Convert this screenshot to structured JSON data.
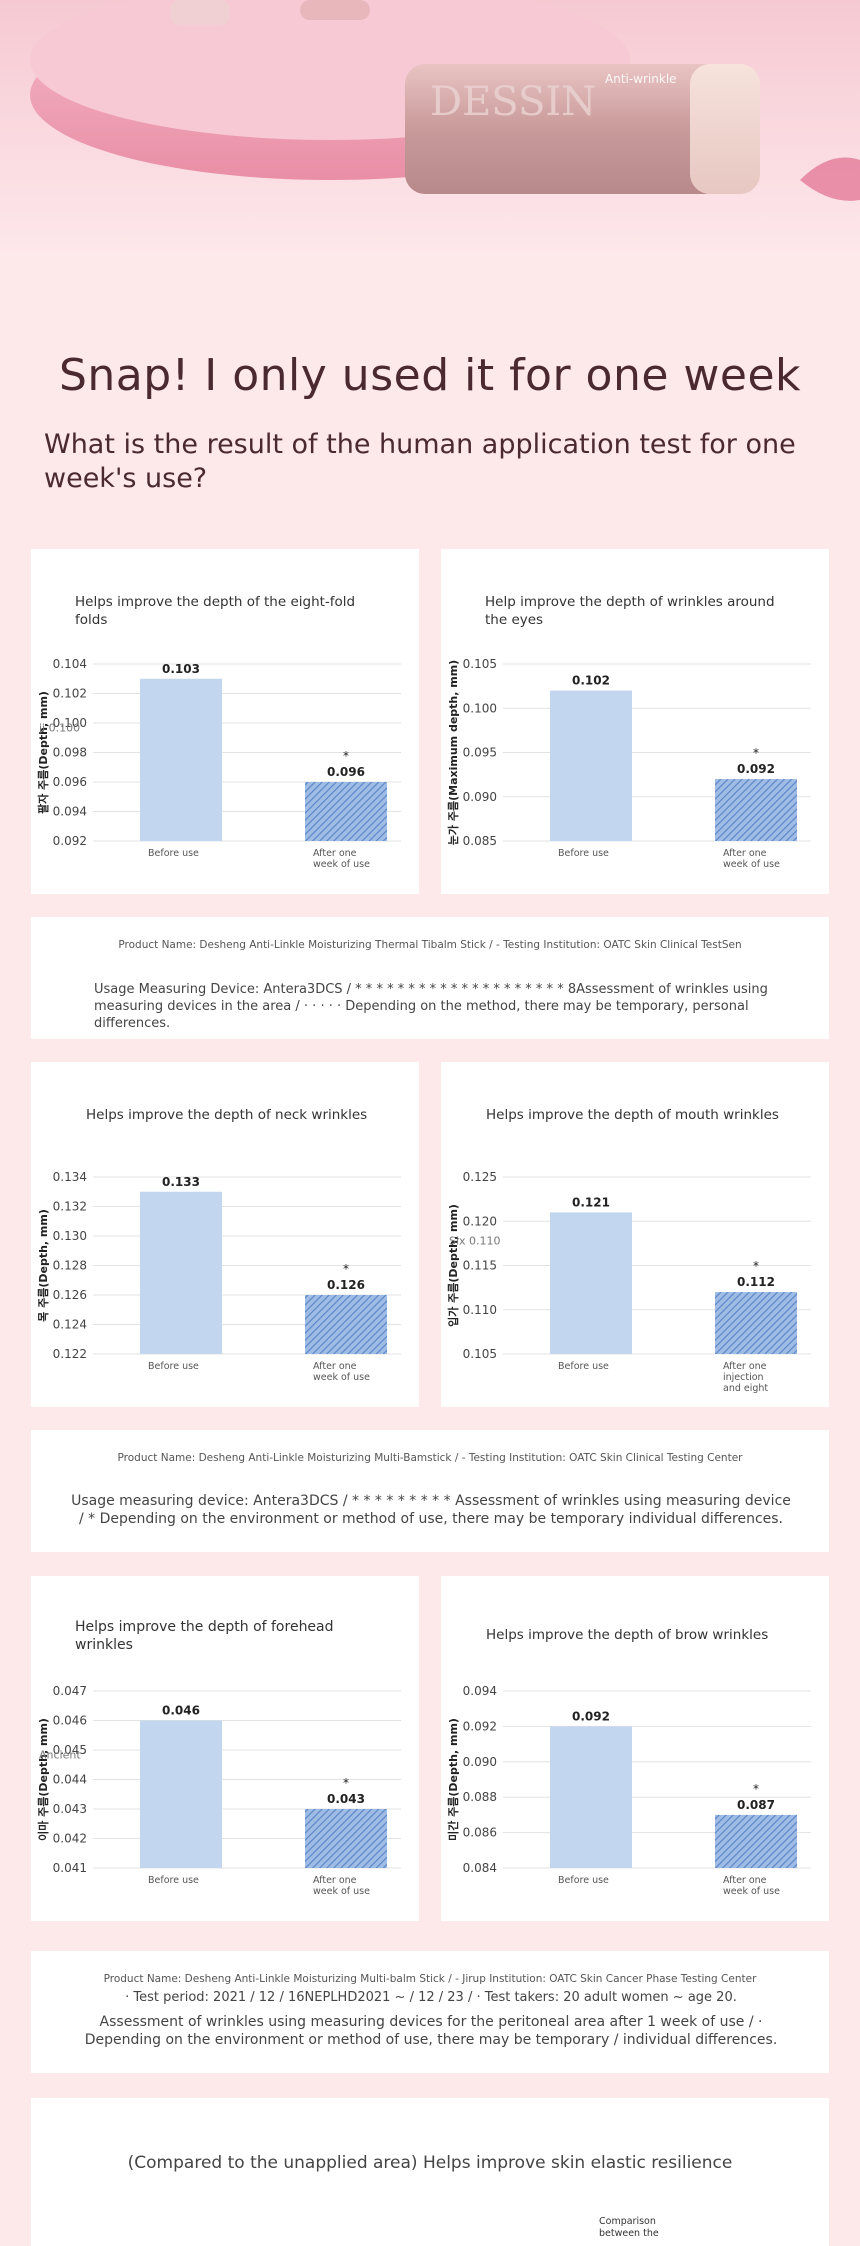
{
  "hero": {
    "brand": "DESSIN",
    "product_tag": "Anti-wrinkle"
  },
  "headline": "Snap! I only used it for one week",
  "subhead": "What is the result of the human application test for one week's use?",
  "colors": {
    "bar_before": "#c2d6ef",
    "bar_after": "#5b86c9",
    "title": "#4a2a30",
    "background": "#fde8ea"
  },
  "charts": [
    {
      "title": "Helps improve the depth of the eight-fold folds",
      "ylabel": "팔자 주름(Depth, mm)",
      "overlay": "ji 0.100",
      "chart_data": {
        "type": "bar",
        "categories": [
          "Before use",
          "After one week of use"
        ],
        "values": [
          0.103,
          0.096
        ],
        "labels": [
          "0.103",
          "0.096"
        ],
        "ylim": [
          0.092,
          0.104
        ],
        "ticks": [
          "0.092",
          "0.094",
          "0.096",
          "0.098",
          "0.100",
          "0.102",
          "0.104"
        ]
      }
    },
    {
      "title": "Help improve the depth of wrinkles around the eyes",
      "ylabel": "눈가 주름(Maximum depth, mm)",
      "overlay": "",
      "chart_data": {
        "type": "bar",
        "categories": [
          "Before use",
          "After one week of use"
        ],
        "values": [
          0.102,
          0.092
        ],
        "labels": [
          "0.102",
          "0.092"
        ],
        "ylim": [
          0.085,
          0.105
        ],
        "ticks": [
          "0.085",
          "0.090",
          "0.095",
          "0.100",
          "0.105"
        ]
      }
    },
    {
      "title": "Helps improve the depth of neck wrinkles",
      "ylabel": "목 주름(Depth, mm)",
      "overlay": "",
      "chart_data": {
        "type": "bar",
        "categories": [
          "Before use",
          "After one week of use"
        ],
        "values": [
          0.133,
          0.126
        ],
        "labels": [
          "0.133",
          "0.126"
        ],
        "ylim": [
          0.122,
          0.134
        ],
        "ticks": [
          "0.122",
          "0.124",
          "0.126",
          "0.128",
          "0.130",
          "0.132",
          "0.134"
        ]
      }
    },
    {
      "title": "Helps improve the depth of mouth wrinkles",
      "ylabel": "입가 주름(Depth, mm)",
      "overlay": "Six 0.110",
      "chart_data": {
        "type": "bar",
        "categories": [
          "Before use",
          "After one injection and eight"
        ],
        "values": [
          0.121,
          0.112
        ],
        "labels": [
          "0.121",
          "0.112"
        ],
        "ylim": [
          0.105,
          0.125
        ],
        "ticks": [
          "0.105",
          "0.110",
          "0.115",
          "0.120",
          "0.125"
        ]
      }
    },
    {
      "title": "Helps improve the depth of forehead wrinkles",
      "ylabel": "이마 주름(Depth, mm)",
      "overlay": "Ancient",
      "chart_data": {
        "type": "bar",
        "categories": [
          "Before use",
          "After one week of use"
        ],
        "values": [
          0.046,
          0.043
        ],
        "labels": [
          "0.046",
          "0.043"
        ],
        "ylim": [
          0.041,
          0.047
        ],
        "ticks": [
          "0.041",
          "0.042",
          "0.043",
          "0.044",
          "0.045",
          "0.046",
          "0.047"
        ]
      }
    },
    {
      "title": "Helps improve the depth of brow wrinkles",
      "ylabel": "미간 주름(Depth, mm)",
      "overlay": "",
      "chart_data": {
        "type": "bar",
        "categories": [
          "Before use",
          "After one week of use"
        ],
        "values": [
          0.092,
          0.087
        ],
        "labels": [
          "0.092",
          "0.087"
        ],
        "ylim": [
          0.084,
          0.094
        ],
        "ticks": [
          "0.084",
          "0.086",
          "0.088",
          "0.090",
          "0.092",
          "0.094"
        ]
      }
    }
  ],
  "info1": {
    "product": "Product Name: Desheng Anti-Linkle Moisturizing Thermal Tibalm Stick / - Testing Institution: OATC Skin Clinical TestSen",
    "body": "Usage Measuring Device: Antera3DCS / * * * * * * * * * * * * * * * * * * * * 8Assessment of wrinkles using measuring devices in the area / · · · · · Depending on the method, there may be temporary, personal differences."
  },
  "info2": {
    "product": "Product Name: Desheng Anti-Linkle Moisturizing Multi-Bamstick / - Testing Institution: OATC Skin Clinical Testing Center",
    "body": "Usage measuring device: Antera3DCS / * * * * * * * * * Assessment of wrinkles using measuring device / * Depending on the environment or method of use, there may be temporary individual differences."
  },
  "info3": {
    "product": "Product Name: Desheng Anti-Linkle Moisturizing Multi-balm Stick / - Jirup Institution: OATC Skin Cancer Phase Testing Center",
    "period": "· Test period: 2021 / 12 / 16NEPLHD2021 ~ / 12 / 23 / · Test takers: 20 adult women ~ age 20.",
    "body": "Assessment of wrinkles using measuring devices for the peritoneal area after 1 week of use / · Depending on the environment or method of use, there may be temporary / individual differences."
  },
  "bottom": {
    "title": "(Compared to the unapplied area) Helps improve skin elastic resilience",
    "note": "Comparison between the"
  }
}
